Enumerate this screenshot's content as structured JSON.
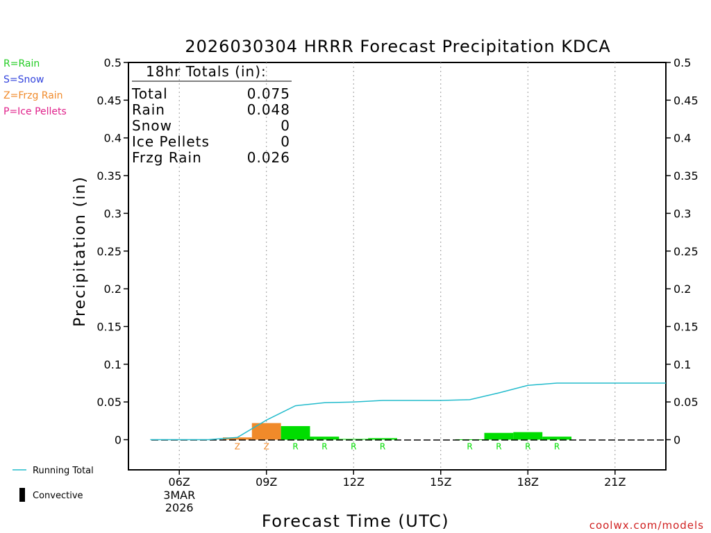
{
  "chart_data": {
    "type": "bar",
    "title": "2026030304 HRRR Forecast Precipitation KDCA",
    "xlabel": "Forecast Time (UTC)",
    "ylabel": "Precipitation (in)",
    "ylim": [
      -0.04,
      0.5
    ],
    "xlim": [
      4.25,
      22.75
    ],
    "yticks": [
      0,
      0.05,
      0.1,
      0.15,
      0.2,
      0.25,
      0.3,
      0.35,
      0.4,
      0.45,
      0.5
    ],
    "ytick_labels": [
      "0",
      "0.05",
      "0.1",
      "0.15",
      "0.2",
      "0.25",
      "0.3",
      "0.35",
      "0.4",
      "0.45",
      "0.5"
    ],
    "xticks": [
      {
        "hour": 6,
        "label": "06Z"
      },
      {
        "hour": 9,
        "label": "09Z"
      },
      {
        "hour": 12,
        "label": "12Z"
      },
      {
        "hour": 15,
        "label": "15Z"
      },
      {
        "hour": 18,
        "label": "18Z"
      },
      {
        "hour": 21,
        "label": "21Z"
      }
    ],
    "date_label": [
      "3MAR",
      "2026"
    ],
    "legend": [
      {
        "label": "R=Rain",
        "color": "#22cc22"
      },
      {
        "label": "S=Snow",
        "color": "#3344dd"
      },
      {
        "label": "Z=Frzg Rain",
        "color": "#f08a2a"
      },
      {
        "label": "P=Ice Pellets",
        "color": "#e0208a"
      }
    ],
    "series_legend": [
      {
        "label": "Running Total",
        "color": "#22bbcc",
        "kind": "line"
      },
      {
        "label": "Convective",
        "color": "#000000",
        "kind": "bar"
      }
    ],
    "totals": {
      "heading": "18hr Totals (in):",
      "rows": [
        {
          "label": "Total",
          "value": "0.075"
        },
        {
          "label": "Rain",
          "value": "0.048"
        },
        {
          "label": "Snow",
          "value": "0"
        },
        {
          "label": "Ice Pellets",
          "value": "0"
        },
        {
          "label": "Frzg Rain",
          "value": "0.026"
        }
      ]
    },
    "colors": {
      "rain": "#00dd00",
      "frzg": "#f08a2a",
      "running_total": "#22bbcc",
      "text": "#000000"
    },
    "bars": [
      {
        "hour": 8,
        "value": 0.003,
        "type": "frzg",
        "code": "Z"
      },
      {
        "hour": 9,
        "value": 0.022,
        "type": "frzg",
        "code": "Z"
      },
      {
        "hour": 10,
        "value": 0.018,
        "type": "rain",
        "code": "R"
      },
      {
        "hour": 11,
        "value": 0.004,
        "type": "rain",
        "code": "R"
      },
      {
        "hour": 12,
        "value": 0.001,
        "type": "rain",
        "code": "R"
      },
      {
        "hour": 13,
        "value": 0.002,
        "type": "rain",
        "code": "R"
      },
      {
        "hour": 16,
        "value": 0.0005,
        "type": "rain",
        "code": "R"
      },
      {
        "hour": 17,
        "value": 0.009,
        "type": "rain",
        "code": "R"
      },
      {
        "hour": 18,
        "value": 0.01,
        "type": "rain",
        "code": "R"
      },
      {
        "hour": 19,
        "value": 0.004,
        "type": "rain",
        "code": "R"
      }
    ],
    "running_total": {
      "x": [
        5,
        6,
        7,
        8,
        9,
        10,
        11,
        12,
        13,
        14,
        15,
        16,
        17,
        18,
        19,
        20,
        21,
        22,
        22.75
      ],
      "y": [
        0,
        0,
        0,
        0.003,
        0.026,
        0.045,
        0.049,
        0.05,
        0.052,
        0.052,
        0.052,
        0.053,
        0.062,
        0.072,
        0.075,
        0.075,
        0.075,
        0.075,
        0.075
      ]
    }
  },
  "footer": {
    "credit": "coolwx.com/models"
  }
}
